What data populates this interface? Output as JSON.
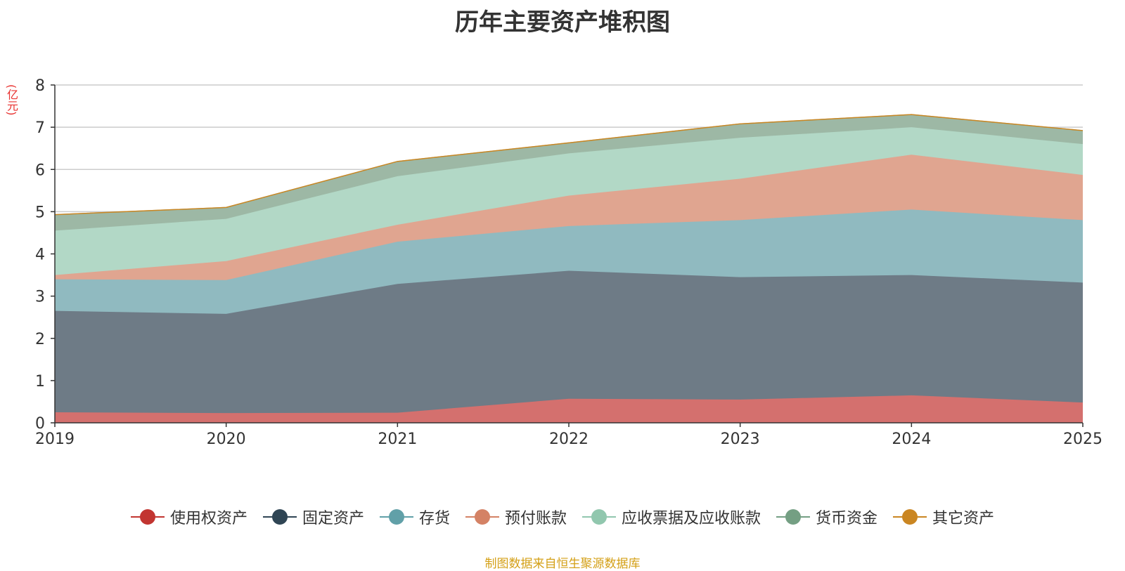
{
  "chart_data": {
    "type": "area",
    "stacked": true,
    "title": "历年主要资产堆积图",
    "ylabel": "(亿元)",
    "x": [
      "2019",
      "2020",
      "2021",
      "2022",
      "2023",
      "2024",
      "2025"
    ],
    "ylim": [
      0,
      8
    ],
    "yticks": [
      "0",
      "1",
      "2",
      "3",
      "4",
      "5",
      "6",
      "7",
      "8"
    ],
    "grid": true,
    "legend_position": "bottom",
    "series": [
      {
        "name": "使用权资产",
        "color": "#c23531",
        "area_color": "#d4706e",
        "values": [
          0.25,
          0.23,
          0.24,
          0.57,
          0.55,
          0.65,
          0.48
        ]
      },
      {
        "name": "固定资产",
        "color": "#2f4554",
        "area_color": "#6e7b86",
        "values": [
          2.4,
          2.35,
          3.05,
          3.03,
          2.9,
          2.85,
          2.84
        ]
      },
      {
        "name": "存货",
        "color": "#61a0a8",
        "area_color": "#90bac0",
        "values": [
          0.75,
          0.8,
          1.0,
          1.06,
          1.35,
          1.55,
          1.48
        ]
      },
      {
        "name": "预付账款",
        "color": "#d48265",
        "area_color": "#e0a590",
        "values": [
          0.1,
          0.45,
          0.4,
          0.72,
          0.98,
          1.3,
          1.07
        ]
      },
      {
        "name": "应收票据及应收账款",
        "color": "#91c7ae",
        "area_color": "#b2d8c6",
        "values": [
          1.05,
          1.0,
          1.15,
          1.0,
          0.97,
          0.65,
          0.73
        ]
      },
      {
        "name": "货币资金",
        "color": "#749f83",
        "area_color": "#9db8a5",
        "values": [
          0.38,
          0.27,
          0.35,
          0.25,
          0.33,
          0.3,
          0.32
        ]
      },
      {
        "name": "其它资产",
        "color": "#ca8622",
        "area_color": "#ca8622",
        "values": [
          0,
          0,
          0,
          0,
          0,
          0,
          0
        ]
      }
    ]
  },
  "footer": {
    "source_note": "制图数据来自恒生聚源数据库"
  }
}
